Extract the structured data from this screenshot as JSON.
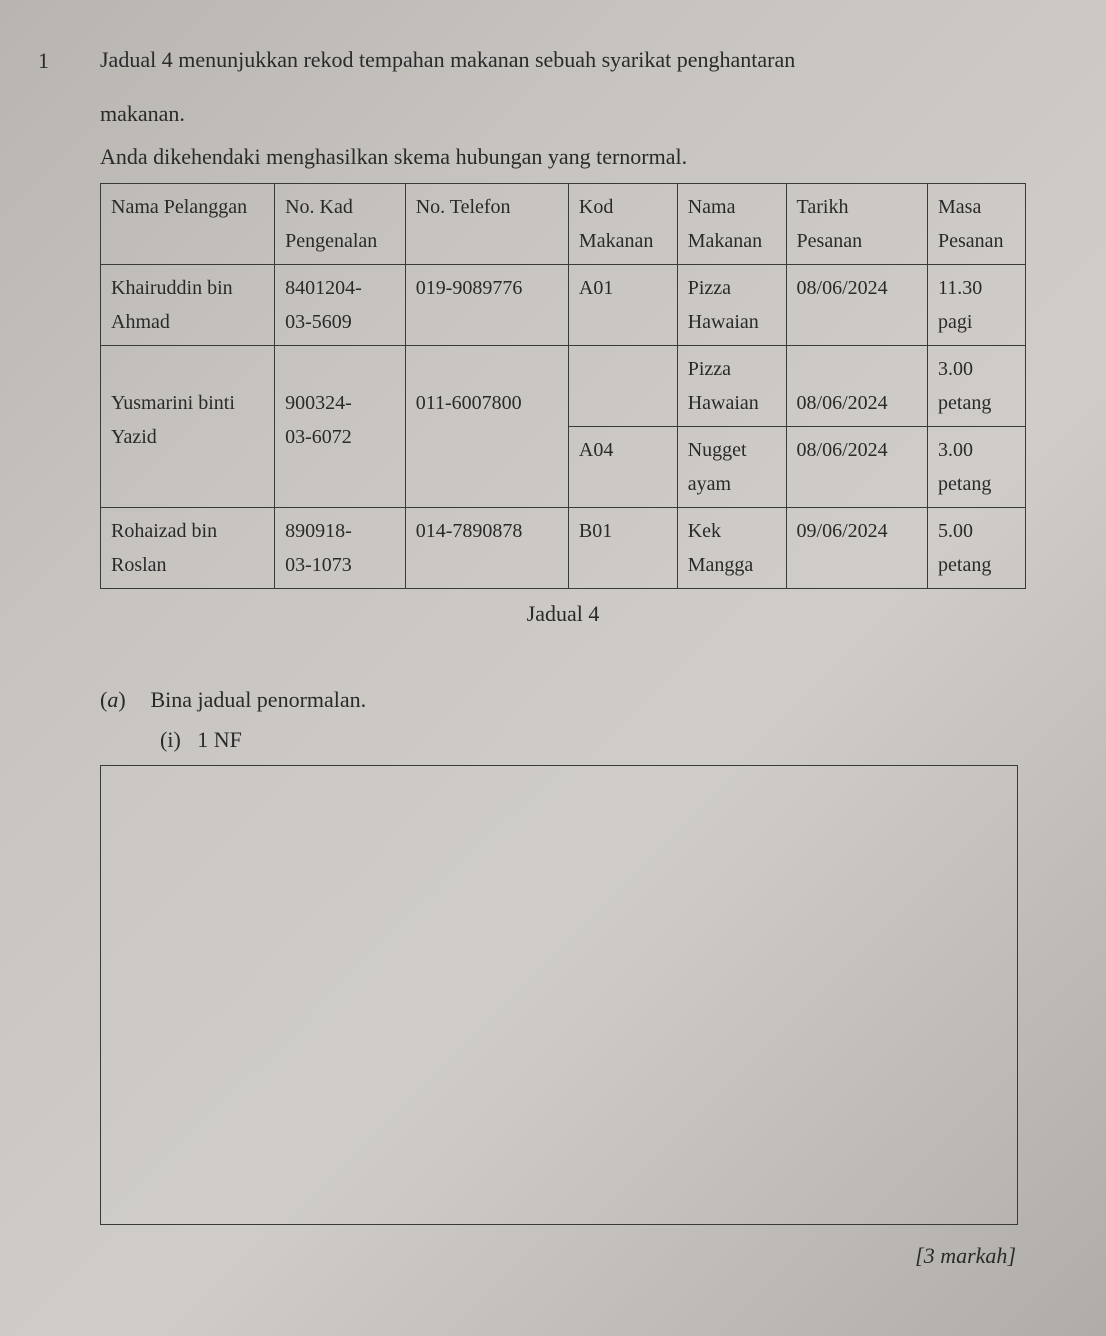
{
  "question_number": "1",
  "intro": {
    "line1": "Jadual 4 menunjukkan rekod tempahan makanan sebuah syarikat penghantaran",
    "line2": "makanan.",
    "line3": "Anda dikehendaki menghasilkan skema hubungan yang ternormal."
  },
  "table": {
    "headers": {
      "c1a": "Nama Pelanggan",
      "c2a": "No. Kad",
      "c2b": "Pengenalan",
      "c3a": "No. Telefon",
      "c4a": "Kod",
      "c4b": "Makanan",
      "c5a": "Nama",
      "c5b": "Makanan",
      "c6a": "Tarikh",
      "c6b": "Pesanan",
      "c7a": "Masa",
      "c7b": "Pesanan"
    },
    "rows": [
      {
        "name_a": "Khairuddin bin",
        "name_b": "Ahmad",
        "ic_a": "8401204-",
        "ic_b": "03-5609",
        "tel": "019-9089776",
        "kod": "A01",
        "food_a": "Pizza",
        "food_b": "Hawaian",
        "date": "08/06/2024",
        "time_a": "11.30",
        "time_b": "pagi"
      },
      {
        "name_a": "Yusmarini binti",
        "name_b": "Yazid",
        "ic_a": "900324-",
        "ic_b": "03-6072",
        "tel": "011-6007800",
        "sub1": {
          "kod": "",
          "food_a": "Pizza",
          "food_b": "Hawaian",
          "date": "08/06/2024",
          "time_a": "3.00",
          "time_b": "petang"
        },
        "sub2": {
          "kod": "A04",
          "food_a": "Nugget",
          "food_b": "ayam",
          "date": "08/06/2024",
          "time_a": "3.00",
          "time_b": "petang"
        }
      },
      {
        "name_a": "Rohaizad bin",
        "name_b": "Roslan",
        "ic_a": "890918-",
        "ic_b": "03-1073",
        "tel": "014-7890878",
        "kod": "B01",
        "food_a": "Kek",
        "food_b": "Mangga",
        "date": "09/06/2024",
        "time_a": "5.00",
        "time_b": "petang"
      }
    ],
    "caption": "Jadual 4"
  },
  "part_a": {
    "label": "(a)",
    "text": "Bina jadual penormalan.",
    "sub_i_label": "(i)",
    "sub_i_text": "1 NF"
  },
  "marks": "[3 markah]",
  "colors": {
    "border": "#3a3a3a",
    "text": "#2a2a2a"
  }
}
